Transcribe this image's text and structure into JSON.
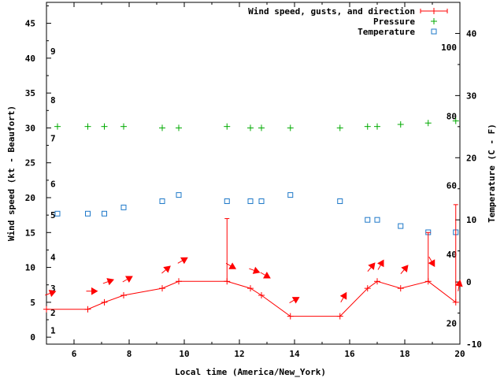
{
  "chart_data": {
    "type": "line",
    "xlabel": "Local time (America/New_York)",
    "ylabel_left": "Wind speed (kt - Beaufort)",
    "ylabel_right": "Temperature (C - F)",
    "x_range": [
      5,
      20
    ],
    "y_left_range": [
      -1,
      48
    ],
    "y_right_range": [
      -10,
      45
    ],
    "x_ticks": [
      "6",
      "8",
      "10",
      "12",
      "14",
      "16",
      "18",
      "20"
    ],
    "y_left_ticks": [
      "0",
      "5",
      "10",
      "15",
      "20",
      "25",
      "30",
      "35",
      "40",
      "45"
    ],
    "y_right_ticks": [
      "-10",
      "0",
      "10",
      "20",
      "30",
      "40"
    ],
    "beaufort_labels": [
      "1",
      "2",
      "3",
      "4",
      "5",
      "6",
      "7",
      "8",
      "9"
    ],
    "fahrenheit_labels": [
      "20",
      "40",
      "60",
      "80",
      "100"
    ],
    "legend": [
      {
        "label": "Wind speed, gusts, and direction",
        "color": "#ff0000",
        "marker": "+"
      },
      {
        "label": "Pressure",
        "color": "#00aa00",
        "marker": "+"
      },
      {
        "label": "Temperature",
        "color": "#1e78c8",
        "marker": "square"
      }
    ],
    "wind": {
      "x": [
        5.0,
        6.5,
        7.1,
        7.8,
        9.2,
        9.8,
        11.55,
        12.4,
        12.8,
        13.85,
        15.65,
        16.65,
        17.0,
        17.85,
        18.85,
        19.85
      ],
      "speed": [
        4,
        4,
        5,
        6,
        7,
        8,
        8,
        7,
        6,
        3,
        3,
        7,
        8,
        7,
        8,
        5
      ],
      "gusts": [
        null,
        null,
        null,
        null,
        null,
        null,
        17,
        null,
        null,
        null,
        null,
        null,
        null,
        null,
        15,
        19
      ],
      "direction_deg": [
        250,
        270,
        250,
        240,
        230,
        240,
        300,
        290,
        300,
        240,
        210,
        220,
        210,
        220,
        330,
        190
      ]
    },
    "pressure": {
      "x": [
        5.4,
        6.5,
        7.1,
        7.8,
        9.2,
        9.8,
        11.55,
        12.4,
        12.8,
        13.85,
        15.65,
        16.65,
        17.0,
        17.85,
        18.85,
        19.85
      ],
      "y": [
        30.2,
        30.2,
        30.2,
        30.2,
        30.0,
        30.0,
        30.2,
        30.0,
        30.0,
        30.0,
        30.0,
        30.2,
        30.2,
        30.5,
        30.7,
        31.0
      ]
    },
    "temperature": {
      "x": [
        5.4,
        6.5,
        7.1,
        7.8,
        9.2,
        9.8,
        11.55,
        12.4,
        12.8,
        13.85,
        15.65,
        16.65,
        17.0,
        17.85,
        18.85,
        19.85
      ],
      "y": [
        11,
        11,
        11,
        12,
        13,
        14,
        13,
        13,
        13,
        14,
        13,
        10,
        10,
        9,
        8,
        8
      ]
    }
  }
}
